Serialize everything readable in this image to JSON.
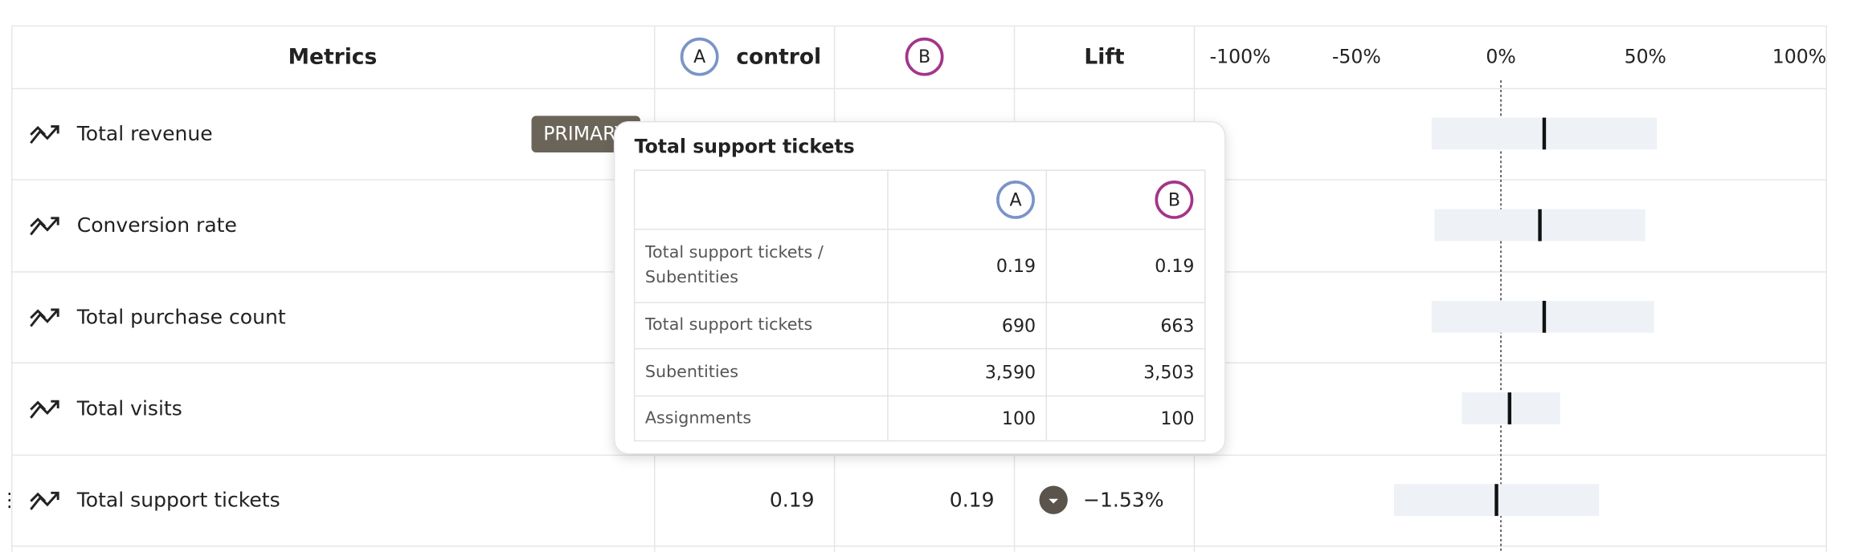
{
  "table": {
    "header": {
      "metrics": "Metrics",
      "variant_a": {
        "badge": "A",
        "name": "control"
      },
      "variant_b": {
        "badge": "B"
      },
      "lift": "Lift"
    },
    "lift_axis": {
      "ticks": [
        {
          "value": -100,
          "label": "-100%"
        },
        {
          "value": -50,
          "label": "-50%"
        },
        {
          "value": 0,
          "label": "0%"
        },
        {
          "value": 50,
          "label": "50%"
        },
        {
          "value": 100,
          "label": "100%"
        }
      ]
    },
    "rows": [
      {
        "metric": "Total revenue",
        "badge": "PRIMARY",
        "interval": {
          "low": -24,
          "high": 54,
          "estimate": 15
        }
      },
      {
        "metric": "Conversion rate",
        "interval": {
          "low": -23,
          "high": 50,
          "estimate": 13.5
        }
      },
      {
        "metric": "Total purchase count",
        "interval": {
          "low": -24,
          "high": 53,
          "estimate": 15
        }
      },
      {
        "metric": "Total visits",
        "interval": {
          "low": -13.5,
          "high": 20.5,
          "estimate": 3
        }
      },
      {
        "metric": "Total support tickets",
        "control": 0.19,
        "treatment": 0.19,
        "lift": {
          "value": -1.53,
          "label": "−1.53%"
        },
        "interval": {
          "low": -37,
          "high": 34
        }
      }
    ]
  },
  "tooltip": {
    "title": "Total support tickets",
    "columns": [
      "A",
      "B"
    ],
    "rows": [
      {
        "label": "Total support tickets / Subentities",
        "a": 0.19,
        "b": 0.19
      },
      {
        "label": "Total support tickets",
        "a": 690,
        "b": 663
      },
      {
        "label": "Subentities",
        "a": {
          "value": 3590,
          "label": "3,590"
        },
        "b": {
          "value": 3503,
          "label": "3,503"
        }
      },
      {
        "label": "Assignments",
        "a": 100,
        "b": 100
      }
    ]
  }
}
